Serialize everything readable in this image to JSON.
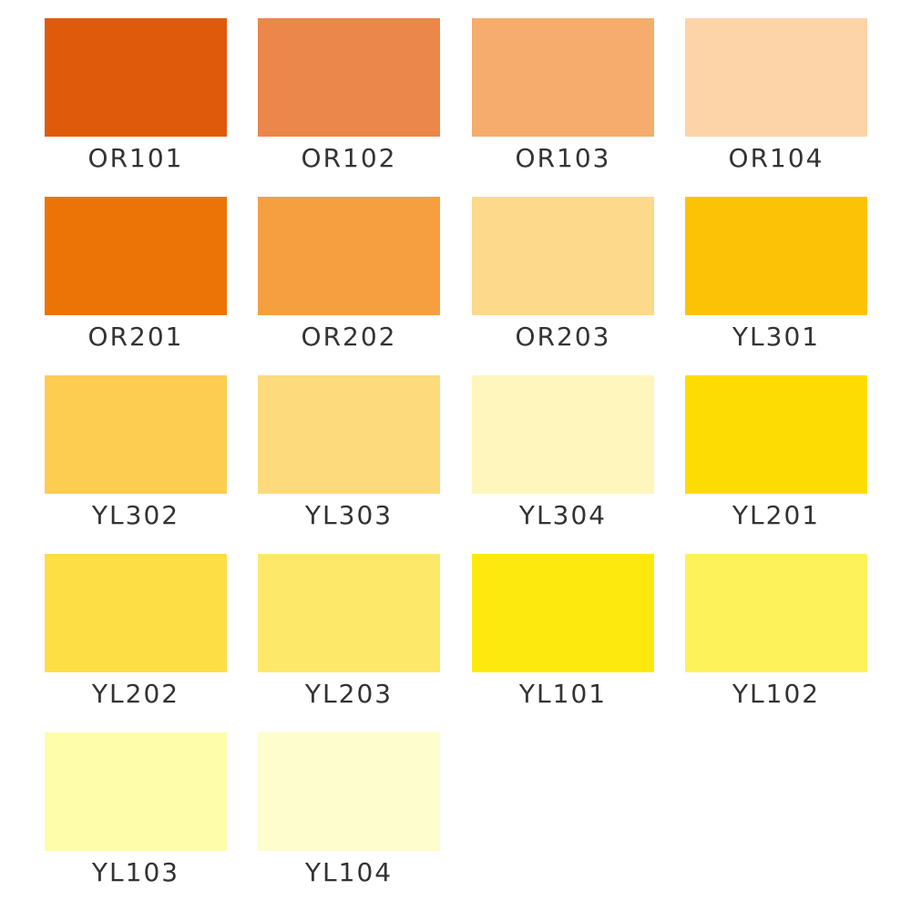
{
  "swatches": [
    {
      "code": "OR101",
      "color": "#E05A0C"
    },
    {
      "code": "OR102",
      "color": "#EB874A"
    },
    {
      "code": "OR103",
      "color": "#F5AC6C"
    },
    {
      "code": "OR104",
      "color": "#FDD4A8"
    },
    {
      "code": "OR201",
      "color": "#EC7406"
    },
    {
      "code": "OR202",
      "color": "#F59F40"
    },
    {
      "code": "OR203",
      "color": "#FDD98C"
    },
    {
      "code": "YL301",
      "color": "#FCC205"
    },
    {
      "code": "YL302",
      "color": "#FCCD50"
    },
    {
      "code": "YL303",
      "color": "#FDDA7B"
    },
    {
      "code": "YL304",
      "color": "#FEF6BC"
    },
    {
      "code": "YL201",
      "color": "#FDDC04"
    },
    {
      "code": "YL202",
      "color": "#FDDE44"
    },
    {
      "code": "YL203",
      "color": "#FDE86A"
    },
    {
      "code": "YL101",
      "color": "#FEE90E"
    },
    {
      "code": "YL102",
      "color": "#FEF25A"
    },
    {
      "code": "YL103",
      "color": "#FEFDAA"
    },
    {
      "code": "YL104",
      "color": "#FEFDCD"
    }
  ]
}
